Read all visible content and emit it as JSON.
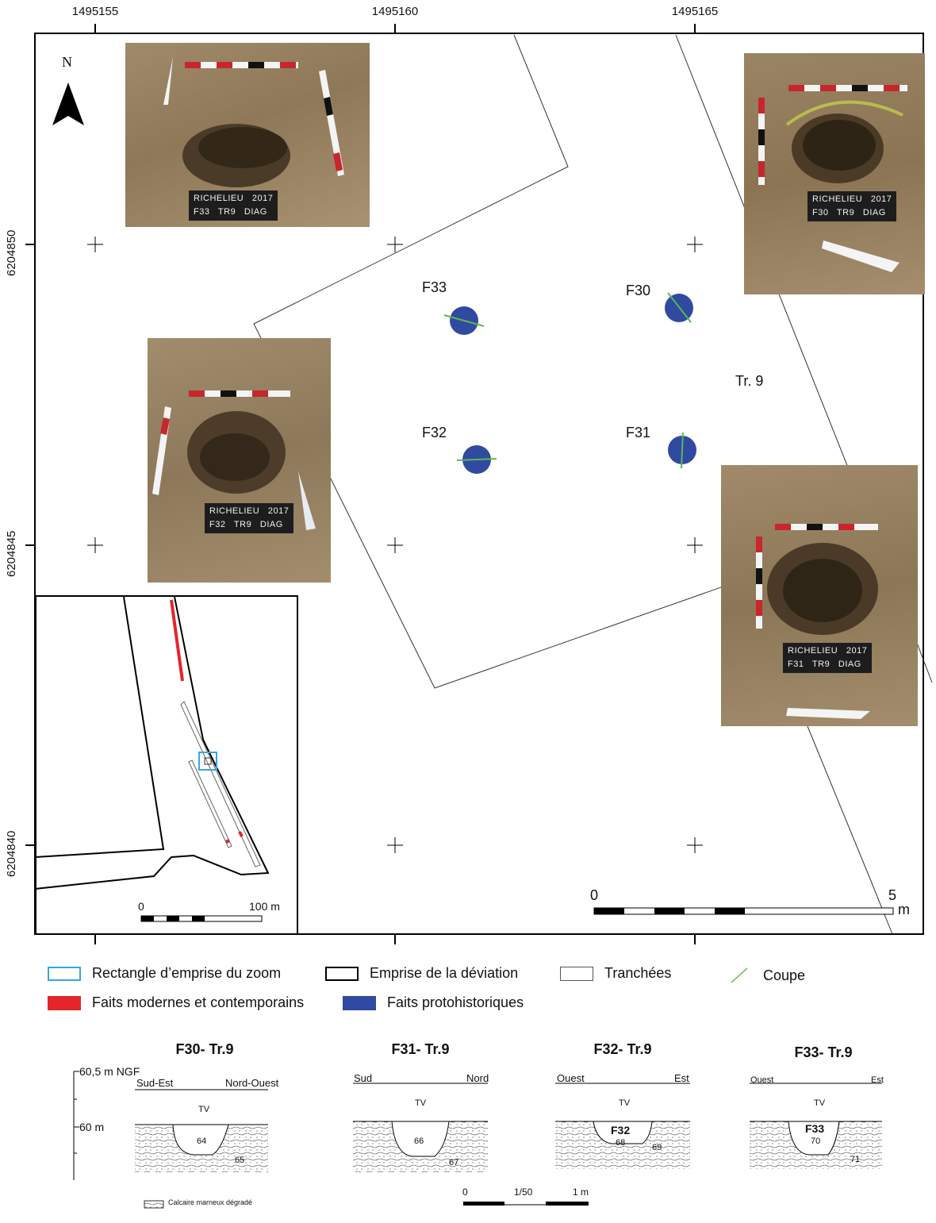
{
  "map": {
    "north": "N",
    "x_coords": [
      "1495155",
      "1495160",
      "1495165"
    ],
    "y_coords": [
      "6204850",
      "6204845",
      "6204840"
    ],
    "trench_label": "Tr. 9",
    "features": [
      {
        "id": "F33",
        "label": "F33"
      },
      {
        "id": "F30",
        "label": "F30"
      },
      {
        "id": "F32",
        "label": "F32"
      },
      {
        "id": "F31",
        "label": "F31"
      }
    ],
    "scale": {
      "start": "0",
      "end": "5",
      "unit": "m"
    },
    "colors": {
      "protohistoric": "#2f4aa0",
      "modern": "#e2262b",
      "zoom_rect": "#3aa6dc",
      "section": "#5cb84c"
    }
  },
  "photos": {
    "f33": {
      "line1": "RICHELIEU   2017",
      "line2": "F33   TR9   DIAG"
    },
    "f30": {
      "line1": "RICHELIEU   2017",
      "line2": "F30   TR9   DIAG"
    },
    "f32": {
      "line1": "RICHELIEU   2017",
      "line2": "F32   TR9   DIAG"
    },
    "f31": {
      "line1": "RICHELIEU   2017",
      "line2": "F31   TR9   DIAG"
    }
  },
  "inset": {
    "scale_start": "0",
    "scale_end": "100 m"
  },
  "legend": {
    "zoom": "Rectangle d’emprise du zoom",
    "deviation": "Emprise de la déviation",
    "trenches": "Tranchées",
    "section": "Coupe",
    "modern": "Faits modernes et contemporains",
    "protohistoric": "Faits protohistoriques"
  },
  "sections": {
    "f30": {
      "title": "F30- Tr.9",
      "left": "Sud-Est",
      "right": "Nord-Ouest",
      "tv": "TV",
      "fill": "64",
      "base": "65"
    },
    "f31": {
      "title": "F31- Tr.9",
      "left": "Sud",
      "right": "Nord",
      "tv": "TV",
      "fill": "66",
      "base": "67"
    },
    "f32": {
      "title": "F32- Tr.9",
      "left": "Ouest",
      "right": "Est",
      "tv": "TV",
      "tag": "F32",
      "fill": "68",
      "base": "69"
    },
    "f33": {
      "title": "F33- Tr.9",
      "left": "Ouest",
      "right": "Est",
      "tv": "TV",
      "tag": "F33",
      "fill": "70",
      "base": "71"
    },
    "elev_top": "60,5 m NGF",
    "elev_mid": "60 m",
    "legend_limestone": "Calcaire marneux dégradé",
    "scale_start": "0",
    "scale_ratio": "1/50",
    "scale_end": "1 m"
  }
}
